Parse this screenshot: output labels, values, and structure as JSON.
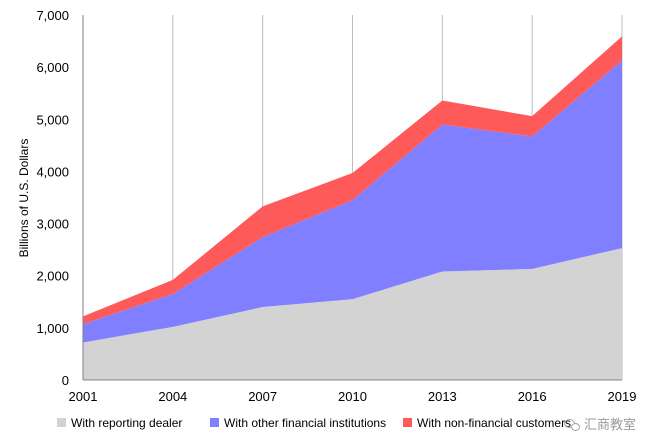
{
  "chart_data": {
    "type": "area",
    "stacked": true,
    "title": "",
    "xlabel": "",
    "ylabel": "Billions of U.S. Dollars",
    "x": [
      2001,
      2004,
      2007,
      2010,
      2013,
      2016,
      2019
    ],
    "x_tick_labels": [
      "2001",
      "2004",
      "2007",
      "2010",
      "2013",
      "2016",
      "2019"
    ],
    "ylim": [
      0,
      7000
    ],
    "y_ticks": [
      0,
      1000,
      2000,
      3000,
      4000,
      5000,
      6000,
      7000
    ],
    "y_tick_labels": [
      "0",
      "1,000",
      "2,000",
      "3,000",
      "4,000",
      "5,000",
      "6,000",
      "7,000"
    ],
    "grid": "vertical",
    "legend_position": "bottom",
    "series": [
      {
        "name": "With reporting dealer",
        "color": "#d3d3d3",
        "values": [
          720,
          1020,
          1400,
          1550,
          2080,
          2130,
          2530
        ]
      },
      {
        "name": "With other financial institutions",
        "color": "#7f7fff",
        "values": [
          350,
          630,
          1340,
          1900,
          2820,
          2540,
          3600
        ]
      },
      {
        "name": "With non-financial customers",
        "color": "#ff5a5a",
        "values": [
          150,
          270,
          590,
          520,
          460,
          390,
          460
        ]
      }
    ]
  },
  "watermark": {
    "icon": "wechat-icon",
    "text": "汇商教室"
  }
}
